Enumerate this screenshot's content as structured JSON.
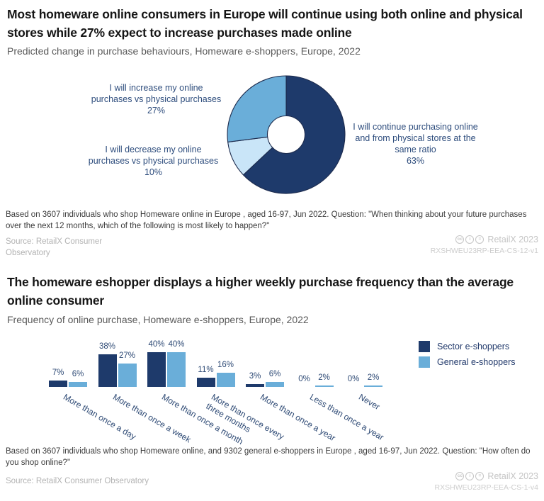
{
  "colors": {
    "navy": "#1e3a6b",
    "medium_blue": "#6aaed9",
    "pale_blue": "#c9e5f8",
    "slice_outline": "#1d2b4d",
    "label_navy": "#2e4d7d"
  },
  "license_icons": [
    {
      "name": "cc-icon",
      "glyph": "cc"
    },
    {
      "name": "by-icon",
      "glyph": "i"
    },
    {
      "name": "nd-icon",
      "glyph": "="
    }
  ],
  "section1": {
    "title": "Most homeware online consumers in Europe will continue using both online and physical stores while 27% expect  to increase purchases made online",
    "subtitle": "Predicted change in purchase behaviours, Homeware e-shoppers, Europe, 2022",
    "footnote": "Based on 3607 individuals who shop Homeware online in Europe , aged 16-97, Jun 2022. Question: \"When thinking about your future purchases over the next 12 months, which of the following is most likely to happen?\"",
    "source": "Source: RetailX Consumer Observatory",
    "brand": "RetailX 2023",
    "code": "RXSHWEU23RP-EEA-CS-12-v1"
  },
  "section2": {
    "title": "The homeware eshopper displays a higher weekly purchase frequency than the average online consumer",
    "subtitle": "Frequency of online purchase, Homeware e-shoppers, Europe, 2022",
    "footnote": "Based on 3607 individuals who shop Homeware online, and 9302 general e-shoppers in Europe , aged 16-97, Jun 2022. Question: \"How often do you shop online?\"",
    "source": "Source: RetailX Consumer Observatory",
    "brand": "RetailX 2023",
    "code": "RXSHWEU23RP-EEA-CS-1-v4"
  },
  "chart_data": [
    {
      "type": "pie",
      "donut": true,
      "title": "Predicted change in purchase behaviours, Homeware e-shoppers, Europe, 2022",
      "start_angle": "12 o'clock, clockwise",
      "slices": [
        {
          "label": "I will continue purchasing online and from physical stores at the same ratio",
          "value": 63,
          "value_label": "63%",
          "color": "#1e3a6b"
        },
        {
          "label": "I will decrease my online purchases vs physical purchases",
          "value": 10,
          "value_label": "10%",
          "color": "#c9e5f8"
        },
        {
          "label": "I will increase my online purchases vs physical purchases",
          "value": 27,
          "value_label": "27%",
          "color": "#6aaed9"
        }
      ]
    },
    {
      "type": "bar",
      "title": "Frequency of online purchase, Homeware e-shoppers, Europe, 2022",
      "categories": [
        "More than once a day",
        "More than once a week",
        "More than once a month",
        "More than once every three months",
        "More than once a year",
        "Less than once a year",
        "Never"
      ],
      "series": [
        {
          "name": "Sector e-shoppers",
          "color": "#1e3a6b",
          "values": [
            7,
            38,
            40,
            11,
            3,
            0,
            0
          ]
        },
        {
          "name": "General e-shoppers",
          "color": "#6aaed9",
          "values": [
            6,
            27,
            40,
            16,
            6,
            2,
            2
          ]
        }
      ],
      "value_suffix": "%",
      "ylim": [
        0,
        45
      ],
      "grid": false,
      "legend_position": "top-right"
    }
  ]
}
